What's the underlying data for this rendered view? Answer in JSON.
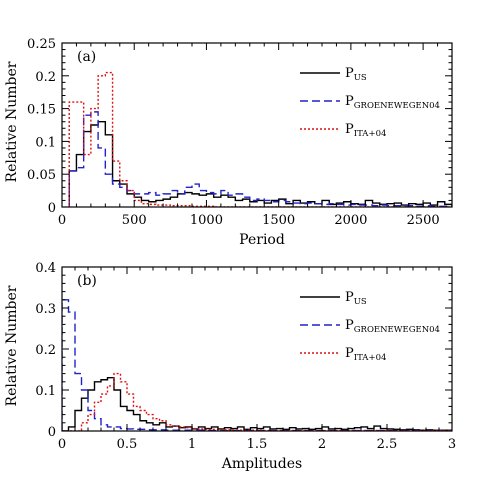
{
  "chart_data": [
    {
      "type": "histogram",
      "panel_label": "(a)",
      "xlabel": "Period",
      "ylabel": "Relative Number",
      "xlim": [
        0,
        2700
      ],
      "ylim": [
        0,
        0.25
      ],
      "xticks": [
        0,
        500,
        1000,
        1500,
        2000,
        2500
      ],
      "xticklabels": [
        "0",
        "500",
        "1000",
        "1500",
        "2000",
        "2500"
      ],
      "yticks": [
        0,
        0.05,
        0.1,
        0.15,
        0.2,
        0.25
      ],
      "yticklabels": [
        "0",
        "0.05",
        "0.1",
        "0.15",
        "0.2",
        "0.25"
      ],
      "bin_width": 50,
      "legend_position": "top-right",
      "series": [
        {
          "name_main": "P",
          "name_sub": "US",
          "color": "#000000",
          "dash": "solid",
          "x": [
            50,
            100,
            150,
            200,
            250,
            300,
            350,
            400,
            450,
            500,
            550,
            600,
            650,
            700,
            750,
            800,
            850,
            900,
            950,
            1000,
            1050,
            1100,
            1150,
            1200,
            1250,
            1300,
            1350,
            1400,
            1450,
            1500,
            1550,
            1600,
            1650,
            1700,
            1750,
            1800,
            1850,
            1900,
            1950,
            2000,
            2050,
            2100,
            2150,
            2200,
            2250,
            2300,
            2350,
            2400,
            2450,
            2500,
            2550,
            2600,
            2650
          ],
          "y": [
            0.055,
            0.08,
            0.115,
            0.125,
            0.13,
            0.11,
            0.04,
            0.035,
            0.02,
            0.015,
            0.01,
            0.008,
            0.01,
            0.012,
            0.015,
            0.02,
            0.022,
            0.02,
            0.018,
            0.02,
            0.015,
            0.018,
            0.015,
            0.01,
            0.012,
            0.008,
            0.01,
            0.006,
            0.01,
            0.012,
            0.005,
            0.01,
            0.006,
            0.008,
            0.005,
            0.01,
            0.004,
            0.006,
            0.008,
            0.005,
            0.004,
            0.01,
            0.006,
            0.004,
            0.005,
            0.006,
            0.003,
            0.005,
            0.004,
            0.006,
            0.003,
            0.008,
            0.004
          ]
        },
        {
          "name_main": "P",
          "name_sub": "GROENEWEGEN04",
          "color": "#2222cc",
          "dash": "8,4",
          "x": [
            50,
            100,
            150,
            200,
            250,
            300,
            350,
            400,
            450,
            500,
            550,
            600,
            650,
            700,
            750,
            800,
            850,
            900,
            950,
            1000,
            1050,
            1100,
            1150,
            1200,
            1250,
            1300,
            1350,
            1400,
            1450,
            1500,
            1550,
            1600,
            1650,
            1700,
            1750,
            1800,
            1850,
            1900,
            1950,
            2000,
            2050,
            2100,
            2150,
            2200,
            2250,
            2300,
            2350,
            2400,
            2450,
            2500,
            2550,
            2600,
            2650
          ],
          "y": [
            0.055,
            0.06,
            0.14,
            0.145,
            0.09,
            0.05,
            0.035,
            0.03,
            0.025,
            0.02,
            0.02,
            0.022,
            0.018,
            0.02,
            0.025,
            0.02,
            0.03,
            0.035,
            0.025,
            0.022,
            0.02,
            0.025,
            0.018,
            0.02,
            0.015,
            0.01,
            0.012,
            0.01,
            0.008,
            0.01,
            0.008,
            0.006,
            0.005,
            0.006,
            0.005,
            0.004,
            0.005,
            0.004,
            0.003,
            0.004,
            0.003,
            0.003,
            0.002,
            0.003,
            0.002,
            0.002,
            0.002,
            0.002,
            0.001,
            0.002,
            0.001,
            0.001,
            0.001
          ]
        },
        {
          "name_main": "P",
          "name_sub": "ITA+04",
          "color": "#dd1111",
          "dash": "2,2",
          "x": [
            50,
            100,
            150,
            200,
            250,
            300,
            350,
            400,
            450,
            500,
            550,
            600,
            650,
            700,
            750,
            800,
            850,
            900,
            950,
            1000,
            1050,
            1100,
            1150,
            1200,
            1250,
            1300,
            1350,
            1400,
            1450,
            1500,
            1550,
            1600,
            1650,
            1700,
            1750,
            1800,
            1850,
            1900,
            1950,
            2000,
            2050,
            2100,
            2150,
            2200,
            2250,
            2300,
            2350,
            2400,
            2450,
            2500,
            2550,
            2600,
            2650
          ],
          "y": [
            0.16,
            0.16,
            0.08,
            0.15,
            0.2,
            0.205,
            0.07,
            0.04,
            0.025,
            0.01,
            0.005,
            0.004,
            0.003,
            0.003,
            0.002,
            0.002,
            0.002,
            0.001,
            0.001,
            0.001,
            0,
            0,
            0,
            0,
            0,
            0,
            0,
            0,
            0,
            0,
            0,
            0,
            0,
            0,
            0,
            0,
            0,
            0,
            0,
            0,
            0,
            0,
            0,
            0,
            0,
            0,
            0,
            0,
            0,
            0,
            0,
            0,
            0
          ]
        }
      ]
    },
    {
      "type": "histogram",
      "panel_label": "(b)",
      "xlabel": "Amplitudes",
      "ylabel": "Relative Number",
      "xlim": [
        0,
        3
      ],
      "ylim": [
        0,
        0.4
      ],
      "xticks": [
        0,
        0.5,
        1,
        1.5,
        2,
        2.5,
        3
      ],
      "xticklabels": [
        "0",
        "0.5",
        "1",
        "1.5",
        "2",
        "2.5",
        "3"
      ],
      "yticks": [
        0,
        0.1,
        0.2,
        0.3,
        0.4
      ],
      "yticklabels": [
        "0",
        "0.1",
        "0.2",
        "0.3",
        "0.4"
      ],
      "bin_width": 0.05,
      "legend_position": "top-right",
      "series": [
        {
          "name_main": "P",
          "name_sub": "US",
          "color": "#000000",
          "dash": "solid",
          "x": [
            0,
            0.05,
            0.1,
            0.15,
            0.2,
            0.25,
            0.3,
            0.35,
            0.4,
            0.45,
            0.5,
            0.55,
            0.6,
            0.65,
            0.7,
            0.75,
            0.8,
            0.85,
            0.9,
            0.95,
            1.0,
            1.05,
            1.1,
            1.15,
            1.2,
            1.25,
            1.3,
            1.35,
            1.4,
            1.45,
            1.5,
            1.55,
            1.6,
            1.65,
            1.7,
            1.75,
            1.8,
            1.85,
            1.9,
            1.95,
            2.0,
            2.05,
            2.1,
            2.15,
            2.2,
            2.25,
            2.3,
            2.35,
            2.4,
            2.45,
            2.5,
            2.55,
            2.6,
            2.65,
            2.7,
            2.75,
            2.8,
            2.85,
            2.9,
            2.95
          ],
          "y": [
            0,
            0.01,
            0.05,
            0.08,
            0.1,
            0.12,
            0.125,
            0.13,
            0.1,
            0.06,
            0.05,
            0.04,
            0.025,
            0.02,
            0.015,
            0.02,
            0.01,
            0.012,
            0.008,
            0.01,
            0.005,
            0.01,
            0.006,
            0.01,
            0.005,
            0.008,
            0.006,
            0.01,
            0.004,
            0.008,
            0.006,
            0.01,
            0.005,
            0.006,
            0.004,
            0.008,
            0.005,
            0.006,
            0.004,
            0.006,
            0.01,
            0.005,
            0.006,
            0.004,
            0.006,
            0.008,
            0.01,
            0.006,
            0.012,
            0.006,
            0.005,
            0.004,
            0.003,
            0.004,
            0.003,
            0.002,
            0.003,
            0.002,
            0.002,
            0.002
          ]
        },
        {
          "name_main": "P",
          "name_sub": "GROENEWEGEN04",
          "color": "#2222cc",
          "dash": "8,4",
          "x": [
            0,
            0.05,
            0.1,
            0.15,
            0.2,
            0.25,
            0.3,
            0.35,
            0.4,
            0.45,
            0.5,
            0.55,
            0.6,
            0.65,
            0.7,
            0.75,
            0.8,
            0.85,
            0.9,
            0.95,
            1.0,
            1.05,
            1.1,
            1.15,
            1.2,
            1.25,
            1.3,
            1.35,
            1.4,
            1.45,
            1.5,
            1.55,
            1.6,
            1.65,
            1.7,
            1.75,
            1.8,
            1.85,
            1.9,
            1.95,
            2.0,
            2.05,
            2.1,
            2.15,
            2.2,
            2.25,
            2.3,
            2.35,
            2.4,
            2.45,
            2.5,
            2.55,
            2.6,
            2.65,
            2.7,
            2.75,
            2.8,
            2.85,
            2.9,
            2.95
          ],
          "y": [
            0.32,
            0.29,
            0.14,
            0.1,
            0.05,
            0.03,
            0.015,
            0.01,
            0.01,
            0.006,
            0.005,
            0.004,
            0.004,
            0.003,
            0.003,
            0.003,
            0.002,
            0.002,
            0.002,
            0.002,
            0.002,
            0.002,
            0.001,
            0.001,
            0.001,
            0.001,
            0.001,
            0.001,
            0.001,
            0.001,
            0.001,
            0.001,
            0.001,
            0.001,
            0.001,
            0.001,
            0.001,
            0.001,
            0.001,
            0.001,
            0.001,
            0.001,
            0.001,
            0.001,
            0.001,
            0.001,
            0.001,
            0.001,
            0.001,
            0.001,
            0.001,
            0.001,
            0.001,
            0.001,
            0.001,
            0.001,
            0.001,
            0.001,
            0.001,
            0.001
          ]
        },
        {
          "name_main": "P",
          "name_sub": "ITA+04",
          "color": "#dd1111",
          "dash": "2,2",
          "x": [
            0,
            0.05,
            0.1,
            0.15,
            0.2,
            0.25,
            0.3,
            0.35,
            0.4,
            0.45,
            0.5,
            0.55,
            0.6,
            0.65,
            0.7,
            0.75,
            0.8,
            0.85,
            0.9,
            0.95,
            1.0,
            1.05,
            1.1,
            1.15,
            1.2,
            1.25,
            1.3,
            1.35,
            1.4,
            1.45,
            1.5,
            1.55,
            1.6,
            1.65,
            1.7,
            1.75,
            1.8,
            1.85,
            1.9,
            1.95,
            2.0,
            2.05,
            2.1,
            2.15,
            2.2,
            2.25,
            2.3,
            2.35,
            2.4,
            2.45,
            2.5,
            2.55,
            2.6,
            2.65,
            2.7,
            2.75,
            2.8,
            2.85,
            2.9,
            2.95
          ],
          "y": [
            0,
            0,
            0,
            0.02,
            0.04,
            0.07,
            0.09,
            0.11,
            0.14,
            0.12,
            0.09,
            0.06,
            0.05,
            0.04,
            0.03,
            0.025,
            0.015,
            0.012,
            0.01,
            0.008,
            0.006,
            0.005,
            0.004,
            0.004,
            0.003,
            0.003,
            0.002,
            0.002,
            0.002,
            0.002,
            0.002,
            0.001,
            0.001,
            0.001,
            0.001,
            0.001,
            0.001,
            0.001,
            0.001,
            0.001,
            0.001,
            0.001,
            0.001,
            0.001,
            0.001,
            0.001,
            0.001,
            0.001,
            0.001,
            0.001,
            0.001,
            0.001,
            0.001,
            0.001,
            0.001,
            0.001,
            0.001,
            0.001,
            0.001,
            0.001
          ]
        }
      ]
    }
  ]
}
